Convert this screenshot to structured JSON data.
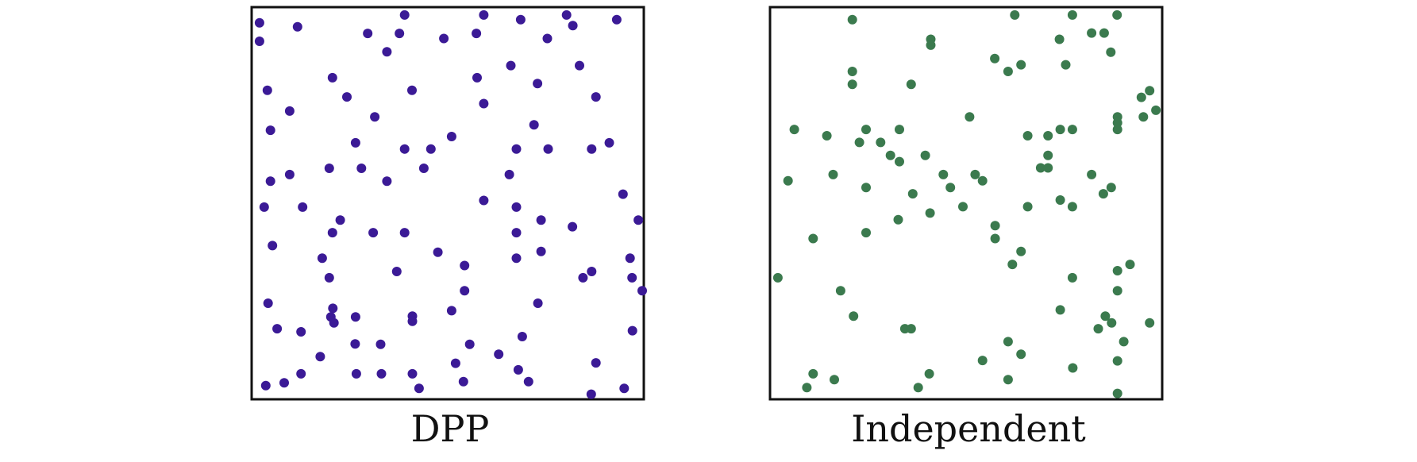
{
  "chart_data": [
    {
      "type": "scatter",
      "title": "DPP",
      "color": "#3b1a96",
      "xlim": [
        0,
        1
      ],
      "ylim": [
        0,
        1
      ],
      "grid": false,
      "points": [
        [
          0.02,
          0.96
        ],
        [
          0.117,
          0.95
        ],
        [
          0.39,
          0.98
        ],
        [
          0.592,
          0.98
        ],
        [
          0.686,
          0.968
        ],
        [
          0.803,
          0.98
        ],
        [
          0.931,
          0.968
        ],
        [
          0.02,
          0.913
        ],
        [
          0.296,
          0.933
        ],
        [
          0.377,
          0.933
        ],
        [
          0.49,
          0.92
        ],
        [
          0.573,
          0.933
        ],
        [
          0.754,
          0.92
        ],
        [
          0.819,
          0.953
        ],
        [
          0.345,
          0.886
        ],
        [
          0.661,
          0.851
        ],
        [
          0.836,
          0.851
        ],
        [
          0.206,
          0.82
        ],
        [
          0.575,
          0.82
        ],
        [
          0.729,
          0.805
        ],
        [
          0.04,
          0.788
        ],
        [
          0.409,
          0.788
        ],
        [
          0.243,
          0.771
        ],
        [
          0.592,
          0.754
        ],
        [
          0.878,
          0.771
        ],
        [
          0.097,
          0.735
        ],
        [
          0.314,
          0.72
        ],
        [
          0.048,
          0.686
        ],
        [
          0.72,
          0.7
        ],
        [
          0.51,
          0.67
        ],
        [
          0.265,
          0.654
        ],
        [
          0.912,
          0.654
        ],
        [
          0.39,
          0.638
        ],
        [
          0.457,
          0.638
        ],
        [
          0.675,
          0.638
        ],
        [
          0.756,
          0.638
        ],
        [
          0.867,
          0.638
        ],
        [
          0.198,
          0.589
        ],
        [
          0.28,
          0.589
        ],
        [
          0.439,
          0.589
        ],
        [
          0.097,
          0.573
        ],
        [
          0.657,
          0.573
        ],
        [
          0.048,
          0.556
        ],
        [
          0.345,
          0.556
        ],
        [
          0.947,
          0.523
        ],
        [
          0.592,
          0.507
        ],
        [
          0.675,
          0.49
        ],
        [
          0.13,
          0.49
        ],
        [
          0.032,
          0.49
        ],
        [
          0.226,
          0.457
        ],
        [
          0.738,
          0.457
        ],
        [
          0.818,
          0.44
        ],
        [
          0.986,
          0.457
        ],
        [
          0.206,
          0.425
        ],
        [
          0.31,
          0.425
        ],
        [
          0.39,
          0.425
        ],
        [
          0.675,
          0.425
        ],
        [
          0.475,
          0.375
        ],
        [
          0.738,
          0.377
        ],
        [
          0.965,
          0.36
        ],
        [
          0.18,
          0.36
        ],
        [
          0.675,
          0.36
        ],
        [
          0.543,
          0.341
        ],
        [
          0.37,
          0.326
        ],
        [
          0.867,
          0.326
        ],
        [
          0.198,
          0.31
        ],
        [
          0.845,
          0.31
        ],
        [
          0.97,
          0.31
        ],
        [
          0.996,
          0.277
        ],
        [
          0.053,
          0.392
        ],
        [
          0.042,
          0.245
        ],
        [
          0.543,
          0.277
        ],
        [
          0.73,
          0.245
        ],
        [
          0.207,
          0.232
        ],
        [
          0.21,
          0.195
        ],
        [
          0.51,
          0.226
        ],
        [
          0.41,
          0.212
        ],
        [
          0.556,
          0.14
        ],
        [
          0.202,
          0.21
        ],
        [
          0.69,
          0.16
        ],
        [
          0.41,
          0.199
        ],
        [
          0.265,
          0.21
        ],
        [
          0.065,
          0.18
        ],
        [
          0.126,
          0.172
        ],
        [
          0.264,
          0.141
        ],
        [
          0.329,
          0.14
        ],
        [
          0.52,
          0.092
        ],
        [
          0.63,
          0.115
        ],
        [
          0.878,
          0.093
        ],
        [
          0.175,
          0.109
        ],
        [
          0.68,
          0.075
        ],
        [
          0.971,
          0.175
        ],
        [
          0.036,
          0.035
        ],
        [
          0.083,
          0.042
        ],
        [
          0.267,
          0.065
        ],
        [
          0.331,
          0.065
        ],
        [
          0.41,
          0.065
        ],
        [
          0.126,
          0.065
        ],
        [
          0.427,
          0.028
        ],
        [
          0.54,
          0.045
        ],
        [
          0.706,
          0.045
        ],
        [
          0.866,
          0.013
        ],
        [
          0.95,
          0.028
        ]
      ]
    },
    {
      "type": "scatter",
      "title": "Independent",
      "color": "#3b7a4e",
      "xlim": [
        0,
        1
      ],
      "ylim": [
        0,
        1
      ],
      "grid": false,
      "points": [
        [
          0.21,
          0.968
        ],
        [
          0.624,
          0.98
        ],
        [
          0.771,
          0.98
        ],
        [
          0.885,
          0.98
        ],
        [
          0.41,
          0.918
        ],
        [
          0.41,
          0.903
        ],
        [
          0.738,
          0.918
        ],
        [
          0.82,
          0.934
        ],
        [
          0.852,
          0.934
        ],
        [
          0.869,
          0.885
        ],
        [
          0.573,
          0.869
        ],
        [
          0.607,
          0.836
        ],
        [
          0.64,
          0.853
        ],
        [
          0.754,
          0.853
        ],
        [
          0.21,
          0.836
        ],
        [
          0.21,
          0.803
        ],
        [
          0.36,
          0.803
        ],
        [
          0.968,
          0.787
        ],
        [
          0.947,
          0.77
        ],
        [
          0.984,
          0.737
        ],
        [
          0.886,
          0.72
        ],
        [
          0.886,
          0.705
        ],
        [
          0.886,
          0.688
        ],
        [
          0.952,
          0.72
        ],
        [
          0.509,
          0.72
        ],
        [
          0.062,
          0.688
        ],
        [
          0.245,
          0.688
        ],
        [
          0.33,
          0.688
        ],
        [
          0.74,
          0.688
        ],
        [
          0.771,
          0.688
        ],
        [
          0.145,
          0.672
        ],
        [
          0.228,
          0.655
        ],
        [
          0.282,
          0.655
        ],
        [
          0.709,
          0.672
        ],
        [
          0.657,
          0.672
        ],
        [
          0.307,
          0.622
        ],
        [
          0.33,
          0.606
        ],
        [
          0.396,
          0.622
        ],
        [
          0.709,
          0.622
        ],
        [
          0.69,
          0.59
        ],
        [
          0.709,
          0.59
        ],
        [
          0.046,
          0.557
        ],
        [
          0.161,
          0.573
        ],
        [
          0.245,
          0.54
        ],
        [
          0.442,
          0.573
        ],
        [
          0.46,
          0.54
        ],
        [
          0.523,
          0.573
        ],
        [
          0.542,
          0.557
        ],
        [
          0.82,
          0.573
        ],
        [
          0.85,
          0.524
        ],
        [
          0.87,
          0.54
        ],
        [
          0.364,
          0.524
        ],
        [
          0.74,
          0.508
        ],
        [
          0.657,
          0.491
        ],
        [
          0.327,
          0.458
        ],
        [
          0.408,
          0.475
        ],
        [
          0.492,
          0.491
        ],
        [
          0.771,
          0.491
        ],
        [
          0.574,
          0.443
        ],
        [
          0.245,
          0.425
        ],
        [
          0.574,
          0.41
        ],
        [
          0.11,
          0.41
        ],
        [
          0.64,
          0.377
        ],
        [
          0.02,
          0.31
        ],
        [
          0.618,
          0.344
        ],
        [
          0.771,
          0.31
        ],
        [
          0.886,
          0.328
        ],
        [
          0.918,
          0.344
        ],
        [
          0.886,
          0.277
        ],
        [
          0.18,
          0.277
        ],
        [
          0.213,
          0.212
        ],
        [
          0.74,
          0.228
        ],
        [
          0.855,
          0.212
        ],
        [
          0.344,
          0.18
        ],
        [
          0.36,
          0.18
        ],
        [
          0.837,
          0.18
        ],
        [
          0.871,
          0.195
        ],
        [
          0.968,
          0.195
        ],
        [
          0.902,
          0.147
        ],
        [
          0.886,
          0.098
        ],
        [
          0.64,
          0.115
        ],
        [
          0.607,
          0.147
        ],
        [
          0.542,
          0.099
        ],
        [
          0.772,
          0.08
        ],
        [
          0.11,
          0.065
        ],
        [
          0.164,
          0.05
        ],
        [
          0.406,
          0.065
        ],
        [
          0.378,
          0.03
        ],
        [
          0.607,
          0.05
        ],
        [
          0.094,
          0.03
        ],
        [
          0.886,
          0.015
        ]
      ]
    }
  ]
}
